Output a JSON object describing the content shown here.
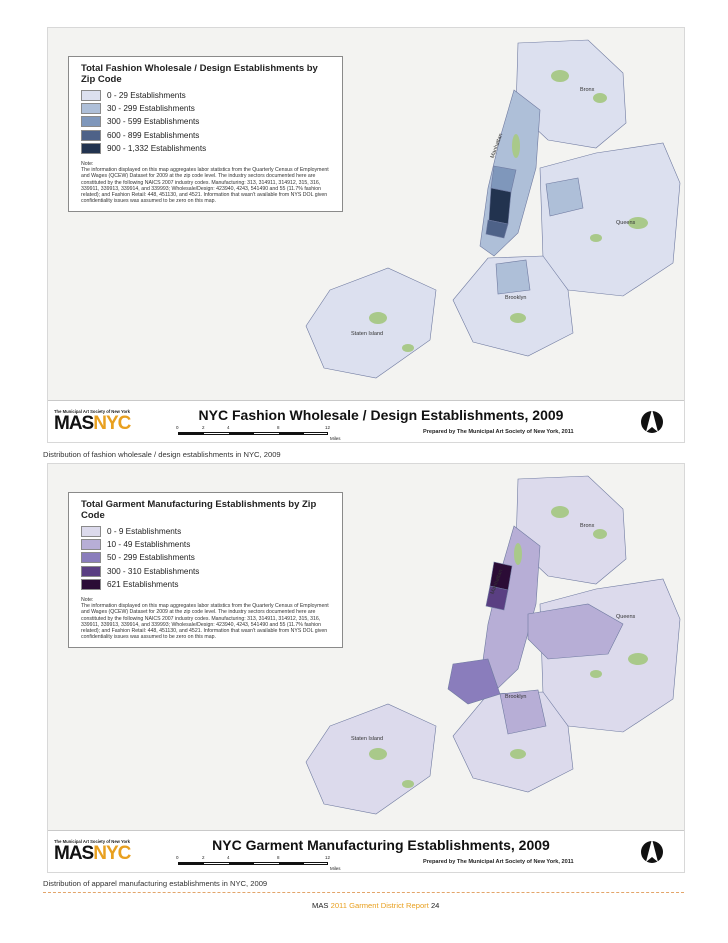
{
  "figures": [
    {
      "legend": {
        "title": "Total Fashion Wholesale / Design Establishments by Zip Code",
        "items": [
          {
            "label": "0 - 29 Establishments",
            "color": "#dce0ef"
          },
          {
            "label": "30 - 299 Establishments",
            "color": "#aebfd8"
          },
          {
            "label": "300 - 599 Establishments",
            "color": "#7f97bb"
          },
          {
            "label": "600 - 899 Establishments",
            "color": "#4e6288"
          },
          {
            "label": "900 - 1,332 Establishments",
            "color": "#22334f"
          }
        ],
        "note_label": "Note:",
        "note_text": "The information displayed on this map aggregates labor statistics from the Quarterly Census of Employment and Wages (QCEW) Dataset for 2009 at the zip code level. The industry sectors documented here are constituted by the following NAICS 2007 industry codes. Manufacturing: 313, 314911, 314912, 315, 316, 339911, 339913, 339914, and 339993; Wholesale/Design: 423940, 4243, 541490 and 55 (11.7% fashion related); and Fashion Retail: 448, 451130, and 4521. Information that wasn't available from NYS DOL given confidentiality issues was assumed to be zero on this map."
      },
      "boroughs": {
        "bronx": "Bronx",
        "manhattan": "Manhattan",
        "queens": "Queens",
        "brooklyn": "Brooklyn",
        "staten_island": "Staten Island"
      },
      "title": "NYC Fashion Wholesale / Design Establishments, 2009",
      "credit": "Prepared by The Municipal Art Society of New York, 2011",
      "scale_ticks": [
        "0",
        "2",
        "4",
        "8",
        "12"
      ],
      "scale_unit": "Miles",
      "caption": "Distribution of fashion wholesale / design establishments in NYC, 2009"
    },
    {
      "legend": {
        "title": "Total Garment Manufacturing Establishments by Zip Code",
        "items": [
          {
            "label": "0 - 9 Establishments",
            "color": "#dcdaec"
          },
          {
            "label": "10 - 49 Establishments",
            "color": "#b7aed6"
          },
          {
            "label": "50 - 299 Establishments",
            "color": "#8a7dbc"
          },
          {
            "label": "300 - 310 Establishments",
            "color": "#5a3f82"
          },
          {
            "label": "621 Establishments",
            "color": "#2b0c36"
          }
        ],
        "note_label": "Note:",
        "note_text": "The information displayed on this map aggregates labor statistics from the Quarterly Census of Employment and Wages (QCEW) Dataset for 2009 at the zip code level. The industry sectors documented here are constituted by the following NAICS 2007 industry codes. Manufacturing: 313, 314911, 314912, 315, 316, 339911, 339913, 339914, and 339993; Wholesale/Design: 423940, 4243, 541490 and 55 (11.7% fashion related); and Fashion Retail: 448, 451130, and 4521. Information that wasn't available from NYS DOL given confidentiality issues was assumed to be zero on this map."
      },
      "boroughs": {
        "bronx": "Bronx",
        "manhattan": "Manhattan",
        "queens": "Queens",
        "brooklyn": "Brooklyn",
        "staten_island": "Staten Island"
      },
      "title": "NYC Garment Manufacturing Establishments, 2009",
      "credit": "Prepared by The Municipal Art Society of New York, 2011",
      "scale_ticks": [
        "0",
        "2",
        "4",
        "8",
        "12"
      ],
      "scale_unit": "Miles",
      "caption": "Distribution of apparel manufacturing establishments in NYC, 2009"
    }
  ],
  "logo": {
    "org": "The Municipal Art Society of New York",
    "part1": "MAS",
    "part2": "NYC"
  },
  "footer": {
    "org": "MAS",
    "year": "2011",
    "title": "Garment District Report",
    "page": "24"
  },
  "colors": {
    "water": "#f3f3f1",
    "park": "#a9c98a",
    "border": "#6f7aa0",
    "accent": "#e8a020"
  }
}
